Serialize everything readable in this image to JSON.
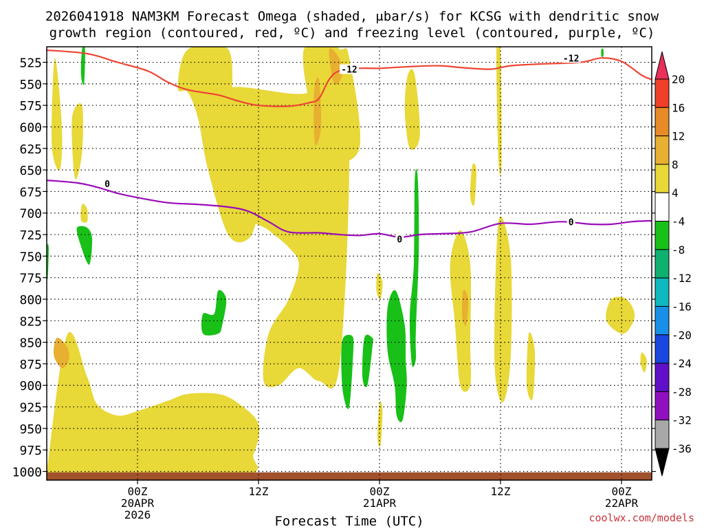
{
  "title_line1": "2026041918 NAM3KM Forecast Omega (shaded, μbar/s) for KCSG with dendritic snow",
  "title_line2": "growth region (contoured, red, ºC) and freezing level (contoured, purple, ºC)",
  "credit": "coolwx.com/models",
  "chart_data": {
    "type": "heatmap",
    "title": "2026041918 NAM3KM Forecast Omega (shaded, μbar/s) for KCSG with dendritic snow growth region (contoured, red, ºC) and freezing level (contoured, purple, ºC)",
    "xlabel": "Forecast Time (UTC)",
    "ylabel": "",
    "y_axis": {
      "reversed": true,
      "range": [
        1010,
        507
      ],
      "ticks": [
        525,
        550,
        575,
        600,
        625,
        650,
        675,
        700,
        725,
        750,
        775,
        800,
        825,
        850,
        875,
        900,
        925,
        950,
        975,
        1000
      ]
    },
    "x_axis": {
      "range": [
        -9,
        51
      ],
      "unit": "hours from 2026-04-20 00Z",
      "ticks": [
        {
          "hour": 0,
          "label": "00Z",
          "sub": [
            "20APR",
            "2026"
          ]
        },
        {
          "hour": 12,
          "label": "12Z",
          "sub": []
        },
        {
          "hour": 24,
          "label": "00Z",
          "sub": [
            "21APR"
          ]
        },
        {
          "hour": 36,
          "label": "12Z",
          "sub": []
        },
        {
          "hour": 48,
          "label": "00Z",
          "sub": [
            "22APR"
          ]
        }
      ]
    },
    "grid": true,
    "colorbar": {
      "labels": [
        20,
        16,
        12,
        8,
        4,
        -4,
        -8,
        -12,
        -16,
        -20,
        -24,
        -28,
        -32,
        -36
      ],
      "colors": [
        "#e8305a",
        "#f0402a",
        "#e88a28",
        "#e8b030",
        "#e8d838",
        "#ffffff",
        "#18c018",
        "#10b070",
        "#10b8c0",
        "#1890e8",
        "#1848e0",
        "#6010c8",
        "#9010c0",
        "#a8a8a8",
        "#000000"
      ]
    },
    "contours": [
      {
        "label": "-12",
        "color": "#ee4433",
        "points": [
          [
            -9,
            511
          ],
          [
            -5,
            515
          ],
          [
            -2,
            525
          ],
          [
            1,
            535
          ],
          [
            3,
            548
          ],
          [
            5,
            557
          ],
          [
            8,
            563
          ],
          [
            10,
            570
          ],
          [
            12,
            575
          ],
          [
            15,
            576
          ],
          [
            17,
            572
          ],
          [
            18,
            567
          ],
          [
            19,
            545
          ],
          [
            20,
            535
          ],
          [
            22,
            532
          ],
          [
            24,
            532
          ],
          [
            27,
            530
          ],
          [
            30,
            529
          ],
          [
            32,
            531
          ],
          [
            35,
            533
          ],
          [
            37,
            529
          ],
          [
            40,
            527
          ],
          [
            44,
            525
          ],
          [
            46,
            520
          ],
          [
            48,
            524
          ],
          [
            50,
            540
          ],
          [
            51,
            545
          ]
        ],
        "labels_at": [
          [
            21,
            533
          ],
          [
            43,
            520
          ]
        ]
      },
      {
        "label": "0",
        "color": "#9a0ab8",
        "points": [
          [
            -9,
            662
          ],
          [
            -6,
            665
          ],
          [
            -4,
            670
          ],
          [
            -2,
            677
          ],
          [
            0,
            682
          ],
          [
            3,
            688
          ],
          [
            6,
            690
          ],
          [
            9,
            693
          ],
          [
            11,
            698
          ],
          [
            13,
            710
          ],
          [
            15,
            722
          ],
          [
            18,
            723
          ],
          [
            20,
            725
          ],
          [
            22,
            726
          ],
          [
            24,
            724
          ],
          [
            26,
            728
          ],
          [
            28,
            725
          ],
          [
            30,
            724
          ],
          [
            33,
            722
          ],
          [
            36,
            712
          ],
          [
            39,
            713
          ],
          [
            42,
            710
          ],
          [
            45,
            713
          ],
          [
            47,
            713
          ],
          [
            49,
            710
          ],
          [
            51,
            709
          ]
        ],
        "labels_at": [
          [
            -3,
            666
          ],
          [
            26,
            730
          ],
          [
            43,
            710
          ]
        ]
      }
    ],
    "shaded_regions": [
      {
        "level": "4 to 8",
        "color": "#e8d838",
        "points": [
          [
            -9,
            1000
          ],
          [
            -7,
            842
          ],
          [
            -5,
            890
          ],
          [
            -4,
            922
          ],
          [
            -2,
            935
          ],
          [
            0,
            930
          ],
          [
            3,
            918
          ],
          [
            5,
            910
          ],
          [
            8,
            910
          ],
          [
            10,
            921
          ],
          [
            12,
            945
          ],
          [
            11.5,
            980
          ],
          [
            10,
            1005
          ],
          [
            -9,
            1005
          ]
        ]
      },
      {
        "level": "4 to 8",
        "color": "#e8d838",
        "points": [
          [
            5,
            510
          ],
          [
            9,
            510
          ],
          [
            9.5,
            580
          ],
          [
            11,
            620
          ],
          [
            12,
            690
          ],
          [
            12,
            700
          ],
          [
            11,
            730
          ],
          [
            9,
            725
          ],
          [
            7,
            650
          ],
          [
            6,
            590
          ],
          [
            5,
            560
          ],
          [
            4,
            555
          ]
        ]
      },
      {
        "level": "4 to 8",
        "color": "#e8d838",
        "points": [
          [
            9,
            555
          ],
          [
            17,
            560
          ],
          [
            18,
            510
          ],
          [
            20,
            510
          ],
          [
            21,
            640
          ],
          [
            20,
            880
          ],
          [
            18,
            895
          ],
          [
            16,
            880
          ],
          [
            14,
            900
          ],
          [
            12.5,
            895
          ],
          [
            13,
            840
          ],
          [
            15,
            800
          ],
          [
            16,
            760
          ],
          [
            15,
            740
          ],
          [
            13,
            720
          ],
          [
            11,
            700
          ],
          [
            11,
            630
          ],
          [
            9,
            600
          ]
        ]
      },
      {
        "level": "4 to 8",
        "color": "#e8d838",
        "points": [
          [
            16.5,
            510
          ],
          [
            20,
            510
          ],
          [
            21,
            520
          ],
          [
            22,
            625
          ],
          [
            18.5,
            640
          ],
          [
            17.5,
            600
          ]
        ]
      },
      {
        "level": "4 to 8",
        "color": "#e8d838",
        "points": [
          [
            -6.5,
            590
          ],
          [
            -5.5,
            575
          ],
          [
            -5.5,
            630
          ],
          [
            -6.2,
            660
          ]
        ]
      },
      {
        "level": "4 to 8",
        "color": "#e8d838",
        "points": [
          [
            -8.2,
            520
          ],
          [
            -7.5,
            600
          ],
          [
            -7.7,
            650
          ],
          [
            -8.5,
            620
          ]
        ]
      },
      {
        "level": "4 to 8",
        "color": "#e8d838",
        "points": [
          [
            26.8,
            540
          ],
          [
            27.5,
            540
          ],
          [
            28,
            610
          ],
          [
            27,
            625
          ],
          [
            26.5,
            580
          ]
        ]
      },
      {
        "level": "4 to 8",
        "color": "#e8d838",
        "points": [
          [
            32,
            720
          ],
          [
            33,
            760
          ],
          [
            33,
            850
          ],
          [
            33,
            900
          ],
          [
            32,
            900
          ],
          [
            31.5,
            830
          ],
          [
            31,
            760
          ]
        ]
      },
      {
        "level": "4 to 8",
        "color": "#e8d838",
        "points": [
          [
            33.2,
            645
          ],
          [
            33.6,
            650
          ],
          [
            33.4,
            690
          ],
          [
            33,
            680
          ]
        ]
      },
      {
        "level": "4 to 8",
        "color": "#e8d838",
        "points": [
          [
            35.6,
            510
          ],
          [
            36,
            510
          ],
          [
            36.1,
            640
          ],
          [
            35.8,
            640
          ]
        ]
      },
      {
        "level": "4 to 8",
        "color": "#e8d838",
        "points": [
          [
            35.8,
            710
          ],
          [
            37,
            750
          ],
          [
            37,
            870
          ],
          [
            36.2,
            920
          ],
          [
            35.4,
            870
          ]
        ]
      },
      {
        "level": "4 to 8",
        "color": "#e8d838",
        "points": [
          [
            38.8,
            840
          ],
          [
            39.4,
            860
          ],
          [
            39.2,
            915
          ],
          [
            38.6,
            900
          ]
        ]
      },
      {
        "level": "4 to 8",
        "color": "#e8d838",
        "points": [
          [
            47,
            800
          ],
          [
            48.5,
            800
          ],
          [
            49.3,
            820
          ],
          [
            48.2,
            840
          ],
          [
            46.5,
            825
          ]
        ]
      },
      {
        "level": "4 to 8",
        "color": "#e8d838",
        "points": [
          [
            24,
            920
          ],
          [
            24.3,
            930
          ],
          [
            24.1,
            970
          ],
          [
            23.8,
            960
          ]
        ]
      },
      {
        "level": "4 to 8",
        "color": "#e8d838",
        "points": [
          [
            23.8,
            770
          ],
          [
            24.3,
            780
          ],
          [
            24.1,
            800
          ],
          [
            23.7,
            790
          ]
        ]
      },
      {
        "level": "4 to 8",
        "color": "#e8d838",
        "points": [
          [
            50,
            862
          ],
          [
            50.5,
            870
          ],
          [
            50.3,
            885
          ],
          [
            49.9,
            875
          ]
        ]
      },
      {
        "level": "4 to 8",
        "color": "#e8d838",
        "points": [
          [
            -5.5,
            690
          ],
          [
            -5,
            695
          ],
          [
            -5,
            710
          ],
          [
            -5.6,
            708
          ]
        ]
      },
      {
        "level": "8 to 12",
        "color": "#e8b030",
        "points": [
          [
            -8,
            845
          ],
          [
            -7,
            855
          ],
          [
            -6.8,
            870
          ],
          [
            -7.5,
            880
          ],
          [
            -8.3,
            865
          ]
        ]
      },
      {
        "level": "8 to 12",
        "color": "#e8b030",
        "points": [
          [
            17.5,
            560
          ],
          [
            18,
            545
          ],
          [
            18.2,
            600
          ],
          [
            17.6,
            620
          ]
        ]
      },
      {
        "level": "8 to 12",
        "color": "#e8b030",
        "points": [
          [
            19,
            510
          ],
          [
            20,
            520
          ],
          [
            20.3,
            540
          ],
          [
            19.5,
            550
          ]
        ]
      },
      {
        "level": "8 to 12",
        "color": "#e8b030",
        "points": [
          [
            32.3,
            790
          ],
          [
            32.8,
            800
          ],
          [
            32.6,
            830
          ],
          [
            32.2,
            820
          ]
        ]
      },
      {
        "level": "-4 to -8",
        "color": "#18c018",
        "points": [
          [
            22.5,
            845
          ],
          [
            23.3,
            845
          ],
          [
            23.3,
            855
          ],
          [
            22.8,
            900
          ],
          [
            22.3,
            890
          ]
        ]
      },
      {
        "level": "-4 to -8",
        "color": "#18c018",
        "points": [
          [
            20.4,
            845
          ],
          [
            21.3,
            843
          ],
          [
            21.4,
            860
          ],
          [
            21,
            925
          ],
          [
            20.4,
            910
          ],
          [
            20.2,
            870
          ]
        ]
      },
      {
        "level": "-4 to -8",
        "color": "#18c018",
        "points": [
          [
            24.8,
            810
          ],
          [
            25.6,
            790
          ],
          [
            26.5,
            830
          ],
          [
            26.6,
            870
          ],
          [
            26.7,
            900
          ],
          [
            26.3,
            940
          ],
          [
            25.7,
            935
          ],
          [
            25.5,
            900
          ],
          [
            24.8,
            860
          ]
        ]
      },
      {
        "level": "-4 to -8",
        "color": "#18c018",
        "points": [
          [
            27.5,
            660
          ],
          [
            27.8,
            660
          ],
          [
            27.9,
            740
          ],
          [
            27.6,
            840
          ],
          [
            27.6,
            870
          ],
          [
            27.2,
            875
          ],
          [
            27,
            820
          ],
          [
            27.4,
            760
          ]
        ]
      },
      {
        "level": "-4 to -8",
        "color": "#18c018",
        "points": [
          [
            -6,
            717
          ],
          [
            -5,
            717
          ],
          [
            -4.5,
            730
          ],
          [
            -4.8,
            760
          ],
          [
            -5.7,
            735
          ]
        ]
      },
      {
        "level": "-4 to -8",
        "color": "#18c018",
        "points": [
          [
            6.5,
            817
          ],
          [
            7.6,
            817
          ],
          [
            8,
            790
          ],
          [
            8.8,
            800
          ],
          [
            8.4,
            830
          ],
          [
            8,
            840
          ],
          [
            6.5,
            840
          ]
        ]
      },
      {
        "level": "-4 to -8",
        "color": "#18c018",
        "points": [
          [
            -5.5,
            510
          ],
          [
            -5.2,
            510
          ],
          [
            -5.3,
            550
          ],
          [
            -5.6,
            540
          ]
        ]
      },
      {
        "level": "-4 to -8",
        "color": "#18c018",
        "points": [
          [
            -9,
            740
          ],
          [
            -8.8,
            740
          ],
          [
            -8.9,
            775
          ],
          [
            -9,
            770
          ]
        ]
      },
      {
        "level": "-4 to -8",
        "color": "#18c018",
        "points": [
          [
            46,
            510
          ],
          [
            46.2,
            510
          ],
          [
            46.2,
            518
          ],
          [
            46,
            518
          ]
        ]
      }
    ],
    "ground": {
      "color": "#a0522d",
      "top_pressure": 1001
    }
  }
}
